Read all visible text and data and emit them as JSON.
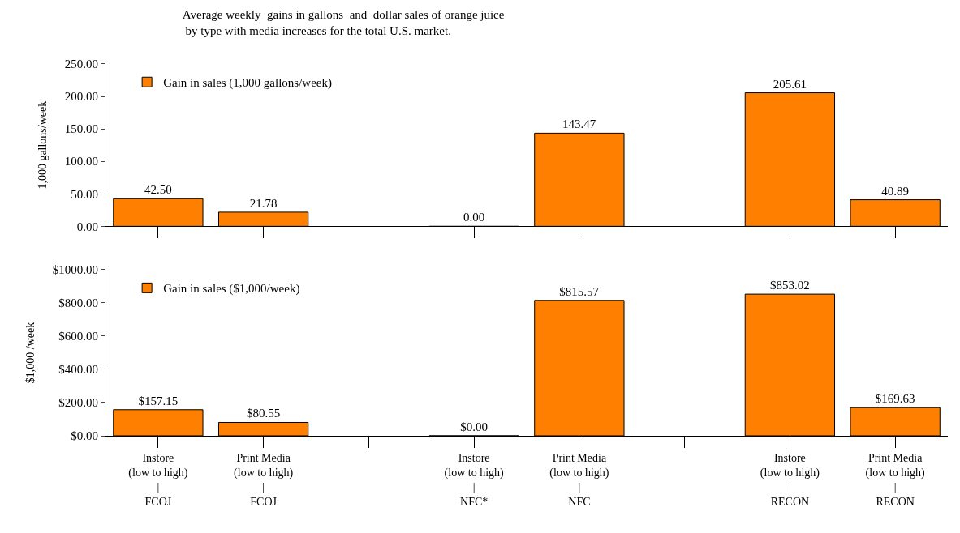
{
  "chart_data": [
    {
      "type": "bar",
      "title": "Average weekly  gains in gallons  and  dollar sales of orange juice\n by type with media increases for the total U.S. market.",
      "ylabel": "1,000 gallons/week",
      "categories": [
        null,
        null,
        null,
        null,
        null,
        null,
        null,
        null
      ],
      "tick_labels": "y",
      "ylim": [
        0,
        250
      ],
      "yticks": [
        {
          "value": 0,
          "label": "0.00"
        },
        {
          "value": 50,
          "label": "50.00"
        },
        {
          "value": 100,
          "label": "100.00"
        },
        {
          "value": 150,
          "label": "150.00"
        },
        {
          "value": 200,
          "label": "200.00"
        },
        {
          "value": 250,
          "label": "250.00"
        }
      ],
      "legend": "top left",
      "series": [
        {
          "name": "Gain in sales (1,000 gallons/week)",
          "color": "#ff8000",
          "values": [
            42.5,
            21.78,
            null,
            0.0,
            143.47,
            null,
            205.61,
            40.89
          ],
          "value_labels": [
            "42.50",
            "21.78",
            null,
            "0.00",
            "143.47",
            null,
            "205.61",
            "40.89"
          ]
        }
      ]
    },
    {
      "type": "bar",
      "ylabel": "$1,000 /week",
      "categories": [
        "Instore\n(low to high)\n|\nFCOJ",
        "Print Media\n(low to high)\n|\nFCOJ",
        null,
        "Instore\n(low to high)\n|\nNFC*",
        "Print Media\n(low to high)\n|\nNFC",
        null,
        "Instore\n(low to high)\n|\nRECON",
        "Print Media\n(low to high)\n|\nRECON"
      ],
      "ylim": [
        0,
        1000
      ],
      "yticks": [
        {
          "value": 0,
          "label": "$0.00"
        },
        {
          "value": 200,
          "label": "$200.00"
        },
        {
          "value": 400,
          "label": "$400.00"
        },
        {
          "value": 600,
          "label": "$600.00"
        },
        {
          "value": 800,
          "label": "$800.00"
        },
        {
          "value": 1000,
          "label": "$1000.00"
        }
      ],
      "legend": "top left",
      "series": [
        {
          "name": "Gain in sales ($1,000/week)",
          "color": "#ff8000",
          "values": [
            157.15,
            80.55,
            null,
            0.0,
            815.57,
            null,
            853.02,
            169.63
          ],
          "value_labels": [
            "$157.15",
            "$80.55",
            null,
            "$0.00",
            "$815.57",
            null,
            "$853.02",
            "$169.63"
          ]
        }
      ]
    }
  ]
}
